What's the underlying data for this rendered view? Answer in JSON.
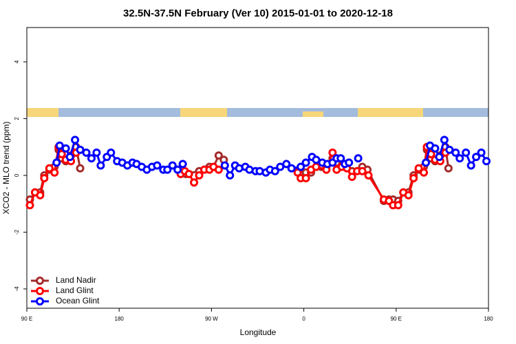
{
  "chart_data": {
    "type": "line",
    "title": "32.5N-37.5N February (Ver 10)   2015-01-01 to 2020-12-18",
    "x_label": "Longitude",
    "y_label": "XCO2 - MLO trend (ppm)",
    "xlim": [
      90,
      540
    ],
    "xticks": [
      {
        "value": 90,
        "label": "90 E"
      },
      180,
      {
        "value": 270,
        "label": "90 W"
      },
      {
        "value": 360,
        "label": "0"
      },
      {
        "value": 450,
        "label": "90 E"
      },
      {
        "value": 540,
        "label": "180"
      }
    ],
    "ylim": [
      -4.68,
      5.21
    ],
    "yticks": [
      -4,
      -2,
      0,
      2,
      4
    ],
    "legend": "bottom-left",
    "series": [
      {
        "name": "Land Nadir",
        "color": "#a52a2a",
        "x": [
          93,
          98,
          103,
          107,
          112,
          117,
          121,
          124,
          128,
          133,
          138,
          142,
          null,
          240,
          245,
          258,
          263,
          268,
          272,
          277,
          282,
          null,
          356,
          362,
          367,
          372,
          377,
          382,
          388,
          392,
          397,
          402,
          407,
          417,
          422,
          438,
          443,
          447,
          452,
          457,
          462,
          467,
          472,
          477,
          480,
          484,
          488,
          493,
          498,
          501
        ],
        "values": [
          -0.85,
          -0.6,
          -0.6,
          0.0,
          0.2,
          0.3,
          0.9,
          0.6,
          0.5,
          0.7,
          1.0,
          0.25,
          null,
          0.1,
          0.05,
          0.15,
          0.2,
          0.3,
          0.3,
          0.7,
          0.55,
          null,
          0.2,
          0.1,
          0.1,
          0.3,
          0.3,
          0.3,
          0.6,
          0.45,
          0.35,
          0.4,
          0.15,
          0.3,
          0.2,
          -0.9,
          -0.85,
          -0.85,
          -0.9,
          -0.6,
          -0.6,
          0.0,
          0.2,
          0.3,
          0.9,
          0.6,
          0.5,
          0.7,
          1.0,
          0.25
        ]
      },
      {
        "name": "Land Glint",
        "color": "#ff0000",
        "x": [
          93,
          98,
          103,
          107,
          112,
          117,
          121,
          124,
          128,
          133,
          138,
          null,
          240,
          244,
          248,
          253,
          258,
          263,
          268,
          272,
          277,
          null,
          354,
          357,
          362,
          367,
          372,
          382,
          388,
          392,
          397,
          402,
          407,
          412,
          417,
          423,
          438,
          443,
          447,
          452,
          457,
          462,
          467,
          472,
          477,
          480,
          484,
          488,
          493,
          498
        ],
        "values": [
          -1.05,
          -0.6,
          -0.7,
          -0.1,
          0.25,
          0.1,
          1.0,
          0.75,
          0.55,
          0.5,
          0.8,
          null,
          0.05,
          0.15,
          0.05,
          -0.25,
          0.0,
          0.2,
          0.2,
          0.3,
          0.2,
          null,
          0.1,
          -0.1,
          -0.1,
          0.2,
          0.3,
          0.2,
          0.8,
          0.2,
          0.3,
          0.25,
          -0.05,
          0.15,
          0.15,
          0.0,
          -0.85,
          -0.9,
          -1.05,
          -1.05,
          -0.6,
          -0.7,
          -0.1,
          0.25,
          0.1,
          1.0,
          0.75,
          0.55,
          0.5,
          0.8
        ]
      },
      {
        "name": "Ocean Glint",
        "color": "#0000ff",
        "x": [
          119,
          122,
          128,
          132,
          137,
          142,
          148,
          153,
          158,
          162,
          168,
          172,
          178,
          183,
          188,
          193,
          197,
          202,
          207,
          212,
          217,
          223,
          227,
          232,
          237,
          242,
          null,
          283,
          288,
          293,
          297,
          303,
          307,
          313,
          317,
          323,
          327,
          332,
          337,
          343,
          348,
          357,
          362,
          368,
          372,
          378,
          383,
          388,
          392,
          396,
          400,
          404,
          null,
          413,
          null,
          479,
          483,
          488,
          492,
          497,
          502,
          508,
          512,
          518,
          523,
          528,
          533,
          538
        ],
        "values": [
          0.45,
          1.05,
          0.95,
          0.65,
          1.25,
          0.9,
          0.8,
          0.6,
          0.8,
          0.35,
          0.65,
          0.8,
          0.5,
          0.45,
          0.35,
          0.45,
          0.4,
          0.3,
          0.2,
          0.3,
          0.35,
          0.2,
          0.2,
          0.35,
          0.2,
          0.4,
          null,
          0.35,
          0.0,
          0.35,
          0.25,
          0.3,
          0.2,
          0.15,
          0.15,
          0.1,
          0.2,
          0.15,
          0.3,
          0.4,
          0.25,
          0.3,
          0.45,
          0.65,
          0.55,
          0.45,
          0.4,
          0.45,
          0.6,
          0.6,
          0.4,
          0.45,
          null,
          0.6,
          null,
          0.45,
          1.05,
          0.95,
          0.65,
          1.25,
          0.9,
          0.8,
          0.6,
          0.8,
          0.35,
          0.65,
          0.8,
          0.5
        ]
      }
    ]
  }
}
